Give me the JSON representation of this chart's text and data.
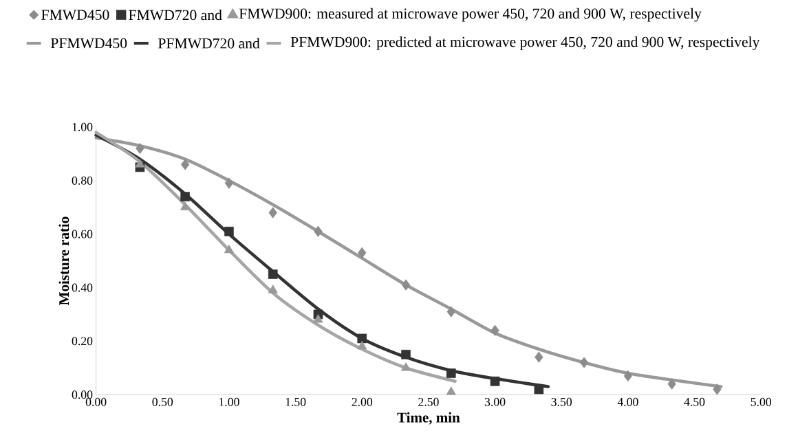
{
  "chart_data": {
    "type": "scatter",
    "xlabel": "Time, min",
    "ylabel": "Moisture ratio",
    "xlim": [
      0,
      5
    ],
    "ylim": [
      0,
      1
    ],
    "xticks": [
      {
        "value": 0,
        "label": "0.00"
      },
      {
        "value": 0.5,
        "label": "0.50"
      },
      {
        "value": 1,
        "label": "1.00"
      },
      {
        "value": 1.5,
        "label": "1.50"
      },
      {
        "value": 2,
        "label": "2.00"
      },
      {
        "value": 2.5,
        "label": "2.50"
      },
      {
        "value": 3,
        "label": "3.00"
      },
      {
        "value": 3.5,
        "label": "3.50"
      },
      {
        "value": 4,
        "label": "4.00"
      },
      {
        "value": 4.5,
        "label": "4.50"
      },
      {
        "value": 5,
        "label": "5.00"
      }
    ],
    "yticks": [
      {
        "value": 0,
        "label": "0.00"
      },
      {
        "value": 0.2,
        "label": "0.20"
      },
      {
        "value": 0.4,
        "label": "0.40"
      },
      {
        "value": 0.6,
        "label": "0.60"
      },
      {
        "value": 0.8,
        "label": "0.80"
      },
      {
        "value": 1,
        "label": "1.00"
      }
    ],
    "grid": false,
    "legend": "top",
    "series": [
      {
        "name": "FMWD450",
        "marker": "diamond",
        "color": "#8c8c8c",
        "x": [
          0.33,
          0.67,
          1.0,
          1.33,
          1.67,
          2.0,
          2.33,
          2.67,
          3.0,
          3.33,
          3.67,
          4.0,
          4.33,
          4.67
        ],
        "values": [
          0.92,
          0.86,
          0.79,
          0.68,
          0.61,
          0.53,
          0.41,
          0.31,
          0.24,
          0.14,
          0.12,
          0.07,
          0.04,
          0.02
        ]
      },
      {
        "name": "FMWD720 and",
        "marker": "square",
        "color": "#333333",
        "x": [
          0.33,
          0.67,
          1.0,
          1.33,
          1.67,
          2.0,
          2.33,
          2.67,
          3.0,
          3.33
        ],
        "values": [
          0.85,
          0.74,
          0.61,
          0.45,
          0.3,
          0.21,
          0.15,
          0.08,
          0.05,
          0.02
        ]
      },
      {
        "name": "FMWD900: measured at microwave power 450, 720 and 900 W, respectively",
        "marker": "triangle",
        "color": "#999999",
        "x": [
          0.33,
          0.67,
          1.0,
          1.33,
          1.67,
          2.0,
          2.33,
          2.67
        ],
        "values": [
          0.86,
          0.7,
          0.54,
          0.39,
          0.28,
          0.18,
          0.1,
          0.01
        ]
      },
      {
        "name": "PFMWD450",
        "type": "line",
        "marker": "none",
        "color": "#999999",
        "x": [
          0,
          0.33,
          0.67,
          1.0,
          1.33,
          1.67,
          2.0,
          2.33,
          2.67,
          3.0,
          3.33,
          3.67,
          4.0,
          4.33,
          4.7
        ],
        "values": [
          0.96,
          0.93,
          0.88,
          0.8,
          0.71,
          0.61,
          0.51,
          0.41,
          0.32,
          0.23,
          0.17,
          0.12,
          0.08,
          0.055,
          0.03
        ]
      },
      {
        "name": "PFMWD720 and",
        "type": "line",
        "marker": "none",
        "color": "#333333",
        "x": [
          0,
          0.33,
          0.67,
          1.0,
          1.33,
          1.67,
          2.0,
          2.33,
          2.67,
          3.0,
          3.4
        ],
        "values": [
          0.97,
          0.88,
          0.75,
          0.6,
          0.46,
          0.32,
          0.21,
          0.14,
          0.09,
          0.06,
          0.03
        ]
      },
      {
        "name": "PFMWD900: predicted at microwave power 450, 720 and 900 W, respectively",
        "type": "line",
        "marker": "none",
        "color": "#a6a6a6",
        "x": [
          0,
          0.33,
          0.67,
          1.0,
          1.33,
          1.67,
          2.0,
          2.33,
          2.7
        ],
        "values": [
          0.98,
          0.87,
          0.71,
          0.54,
          0.38,
          0.26,
          0.17,
          0.1,
          0.05
        ]
      }
    ]
  }
}
